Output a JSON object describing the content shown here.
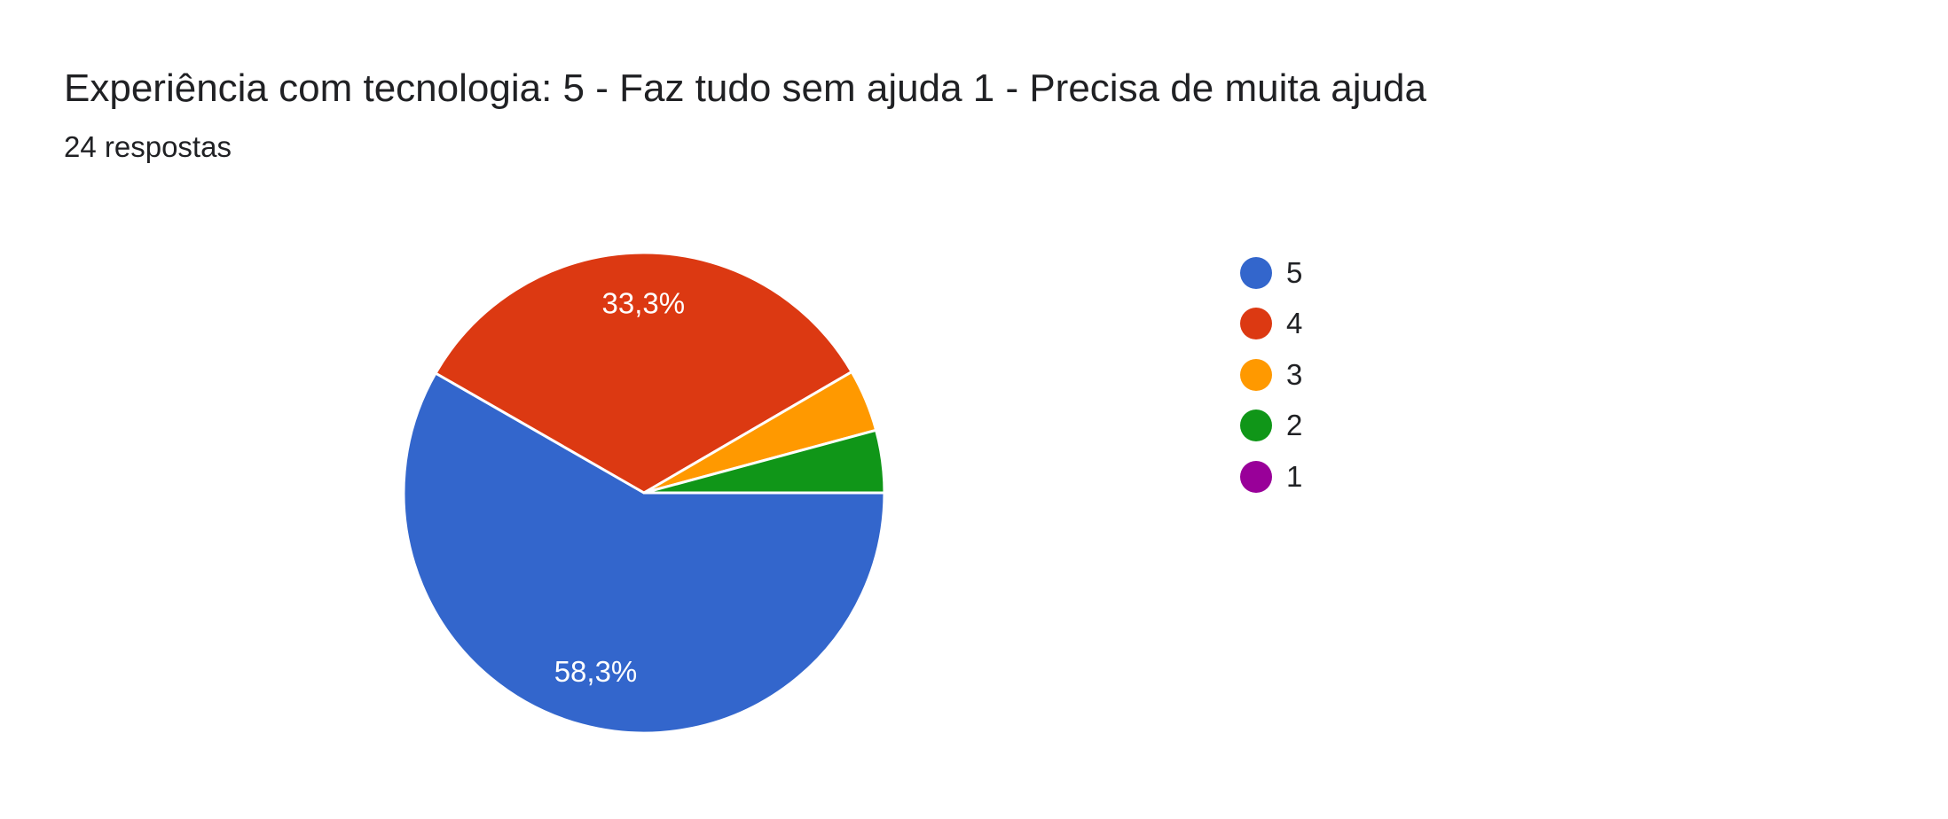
{
  "chart_data": {
    "type": "pie",
    "title": "Experiência com tecnologia: 5 - Faz tudo sem ajuda 1 - Precisa de muita ajuda",
    "subtitle": "24 respostas",
    "legend_position": "right",
    "slices": [
      {
        "label": "5",
        "value": 58.3,
        "count": 14,
        "color": "#3366cc",
        "data_label": "58,3%"
      },
      {
        "label": "4",
        "value": 33.3,
        "count": 8,
        "color": "#dc3912",
        "data_label": "33,3%"
      },
      {
        "label": "3",
        "value": 4.2,
        "count": 1,
        "color": "#ff9900",
        "data_label": ""
      },
      {
        "label": "2",
        "value": 4.2,
        "count": 1,
        "color": "#109618",
        "data_label": ""
      },
      {
        "label": "1",
        "value": 0,
        "count": 0,
        "color": "#990099",
        "data_label": ""
      }
    ]
  }
}
